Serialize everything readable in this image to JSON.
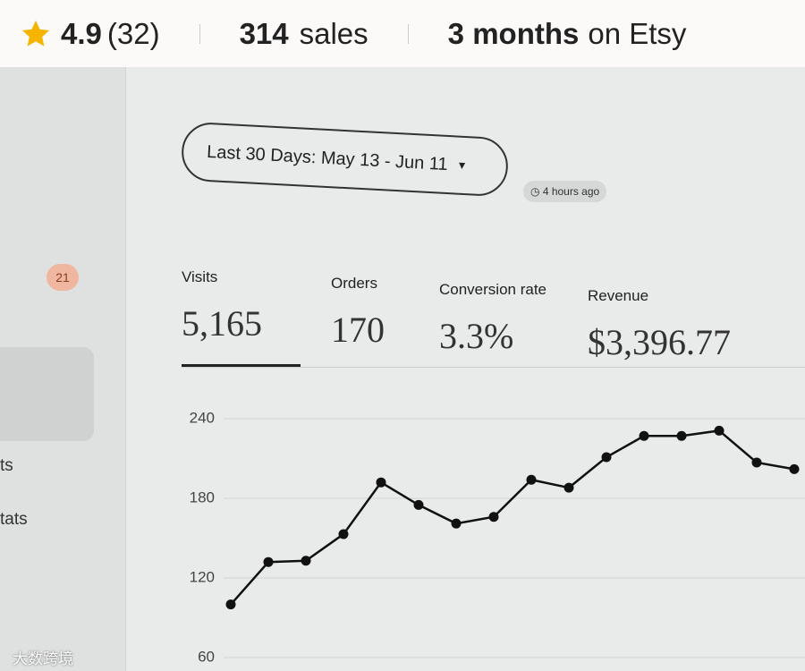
{
  "header": {
    "rating": "4.9",
    "reviews": "(32)",
    "sales": "314",
    "sales_label": "sales",
    "tenure": "3 months",
    "tenure_label": "on Etsy"
  },
  "sidebar": {
    "badge": "21",
    "items": [
      "ts",
      "tats"
    ]
  },
  "dashboard": {
    "date_range": "Last 30 Days: May 13 - Jun 11",
    "updated": "4 hours ago",
    "stats": [
      {
        "label": "Visits",
        "value": "5,165"
      },
      {
        "label": "Orders",
        "value": "170"
      },
      {
        "label": "Conversion rate",
        "value": "3.3%"
      },
      {
        "label": "Revenue",
        "value": "$3,396.77"
      }
    ]
  },
  "chart_data": {
    "type": "line",
    "color": "#111111",
    "ylim": [
      60,
      240
    ],
    "yticks": [
      60,
      120,
      180,
      240
    ],
    "grid": true,
    "values": [
      100,
      132,
      133,
      153,
      192,
      175,
      161,
      166,
      194,
      188,
      211,
      227,
      227,
      231,
      207,
      202
    ]
  },
  "watermark": "大数跨境"
}
